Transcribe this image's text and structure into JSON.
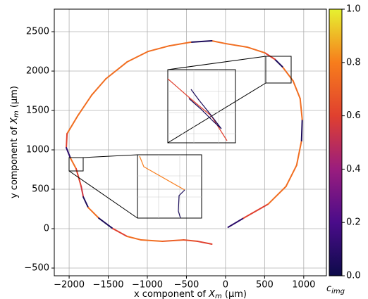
{
  "chart_data": {
    "type": "colored-line",
    "xlabel": {
      "text": "x component of ",
      "symbol": "X",
      "subscript": "m",
      "unit": "(μm)"
    },
    "ylabel": {
      "text": "y component of ",
      "symbol": "X",
      "subscript": "m",
      "unit": "(μm)"
    },
    "colorbar_label": {
      "symbol": "c",
      "subscript": "img"
    },
    "x": [
      33,
      231,
      547,
      773,
      909,
      972,
      981,
      954,
      864,
      728,
      630,
      502,
      276,
      5,
      -176,
      -446,
      -717,
      -988,
      -1259,
      -1530,
      -1711,
      -1892,
      -2027,
      -2036,
      -1982,
      -1910,
      -1846,
      -1819,
      -1756,
      -1621,
      -1440,
      -1259,
      -1079,
      -808,
      -537,
      -356,
      -175
    ],
    "y": [
      18,
      134,
      313,
      536,
      804,
      1116,
      1384,
      1652,
      1875,
      2054,
      2150,
      2232,
      2304,
      2348,
      2384,
      2366,
      2321,
      2250,
      2116,
      1902,
      1696,
      1429,
      1205,
      1027,
      893,
      759,
      536,
      402,
      268,
      134,
      0,
      -98,
      -143,
      -161,
      -143,
      -161,
      -196
    ],
    "c": [
      0.1,
      0.6,
      0.75,
      0.75,
      0.75,
      0.05,
      0.75,
      0.75,
      0.75,
      0.05,
      0.6,
      0.75,
      0.75,
      0.75,
      0.05,
      0.75,
      0.75,
      0.75,
      0.75,
      0.75,
      0.75,
      0.75,
      0.6,
      0.1,
      0.75,
      0.6,
      0.55,
      0.05,
      0.75,
      0.05,
      0.6,
      0.75,
      0.75,
      0.7,
      0.65,
      0.6,
      0.55
    ],
    "colormap": [
      "#0d0b4a",
      "#4a0c8a",
      "#9a1d7e",
      "#e0402f",
      "#f77d1c",
      "#e6f230"
    ],
    "clim": [
      0,
      1
    ],
    "cticks": [
      {
        "value": 0,
        "label": "0.0"
      },
      {
        "value": 0.2,
        "label": "0.2"
      },
      {
        "value": 0.4,
        "label": "0.4"
      },
      {
        "value": 0.6,
        "label": "0.6"
      },
      {
        "value": 0.8,
        "label": "0.8"
      },
      {
        "value": 1,
        "label": "1.0"
      }
    ],
    "xlim": [
      -2190,
      1290
    ],
    "xticks": [
      {
        "value": -2000,
        "label": "−2000"
      },
      {
        "value": -1500,
        "label": "−1500"
      },
      {
        "value": -1000,
        "label": "−1000"
      },
      {
        "value": -500,
        "label": "−500"
      },
      0,
      500,
      1000
    ],
    "ylim": [
      -598,
      2786
    ],
    "yticks": [
      {
        "value": -500,
        "label": "−500"
      },
      0,
      500,
      1000,
      1500,
      2000,
      2500
    ],
    "grid": true
  }
}
